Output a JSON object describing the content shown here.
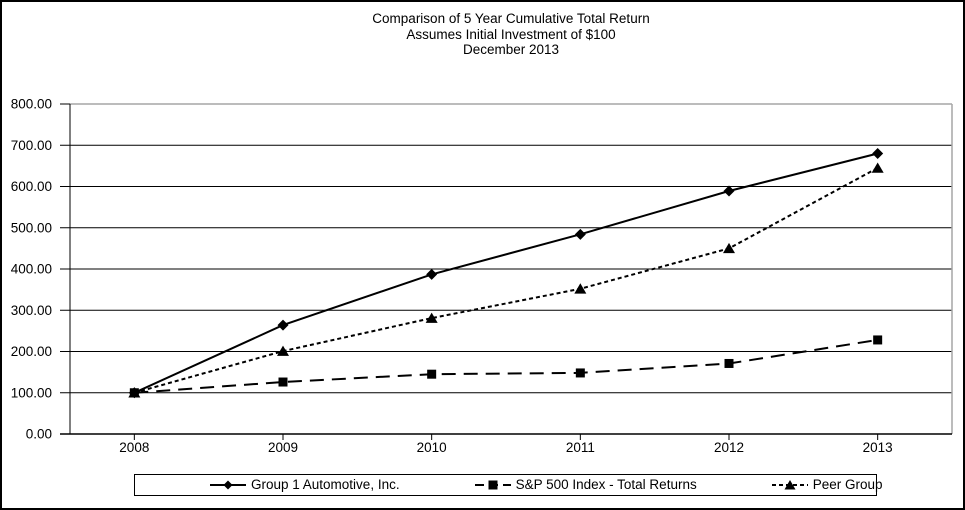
{
  "title": {
    "line1": "Comparison of 5 Year Cumulative Total Return",
    "line2": "Assumes Initial Investment of $100",
    "line3": "December 2013"
  },
  "chart_data": {
    "type": "line",
    "categories": [
      "2008",
      "2009",
      "2010",
      "2011",
      "2012",
      "2013"
    ],
    "series": [
      {
        "name": "Group 1 Automotive, Inc.",
        "marker": "diamond",
        "line_style": "solid",
        "values": [
          100,
          264,
          387,
          484,
          589,
          680
        ]
      },
      {
        "name": "S&P 500 Index - Total Returns",
        "marker": "square",
        "line_style": "long-dash",
        "values": [
          100,
          126,
          145,
          148,
          171,
          228
        ]
      },
      {
        "name": "Peer Group",
        "marker": "triangle",
        "line_style": "short-dash",
        "values": [
          100,
          201,
          281,
          352,
          450,
          645
        ]
      }
    ],
    "ylim": [
      0,
      800
    ],
    "y_tick_interval": 100,
    "y_tick_labels": [
      "0.00",
      "100.00",
      "200.00",
      "300.00",
      "400.00",
      "500.00",
      "600.00",
      "700.00",
      "800.00"
    ],
    "xlabel": "",
    "ylabel": "",
    "grid": "horizontal-on",
    "legend_position": "bottom",
    "colors": {
      "series_color": "#000000",
      "gridline_color": "#000000",
      "plot_border_color": "#a6a6a6",
      "text_color": "#000000",
      "background": "#ffffff"
    }
  }
}
